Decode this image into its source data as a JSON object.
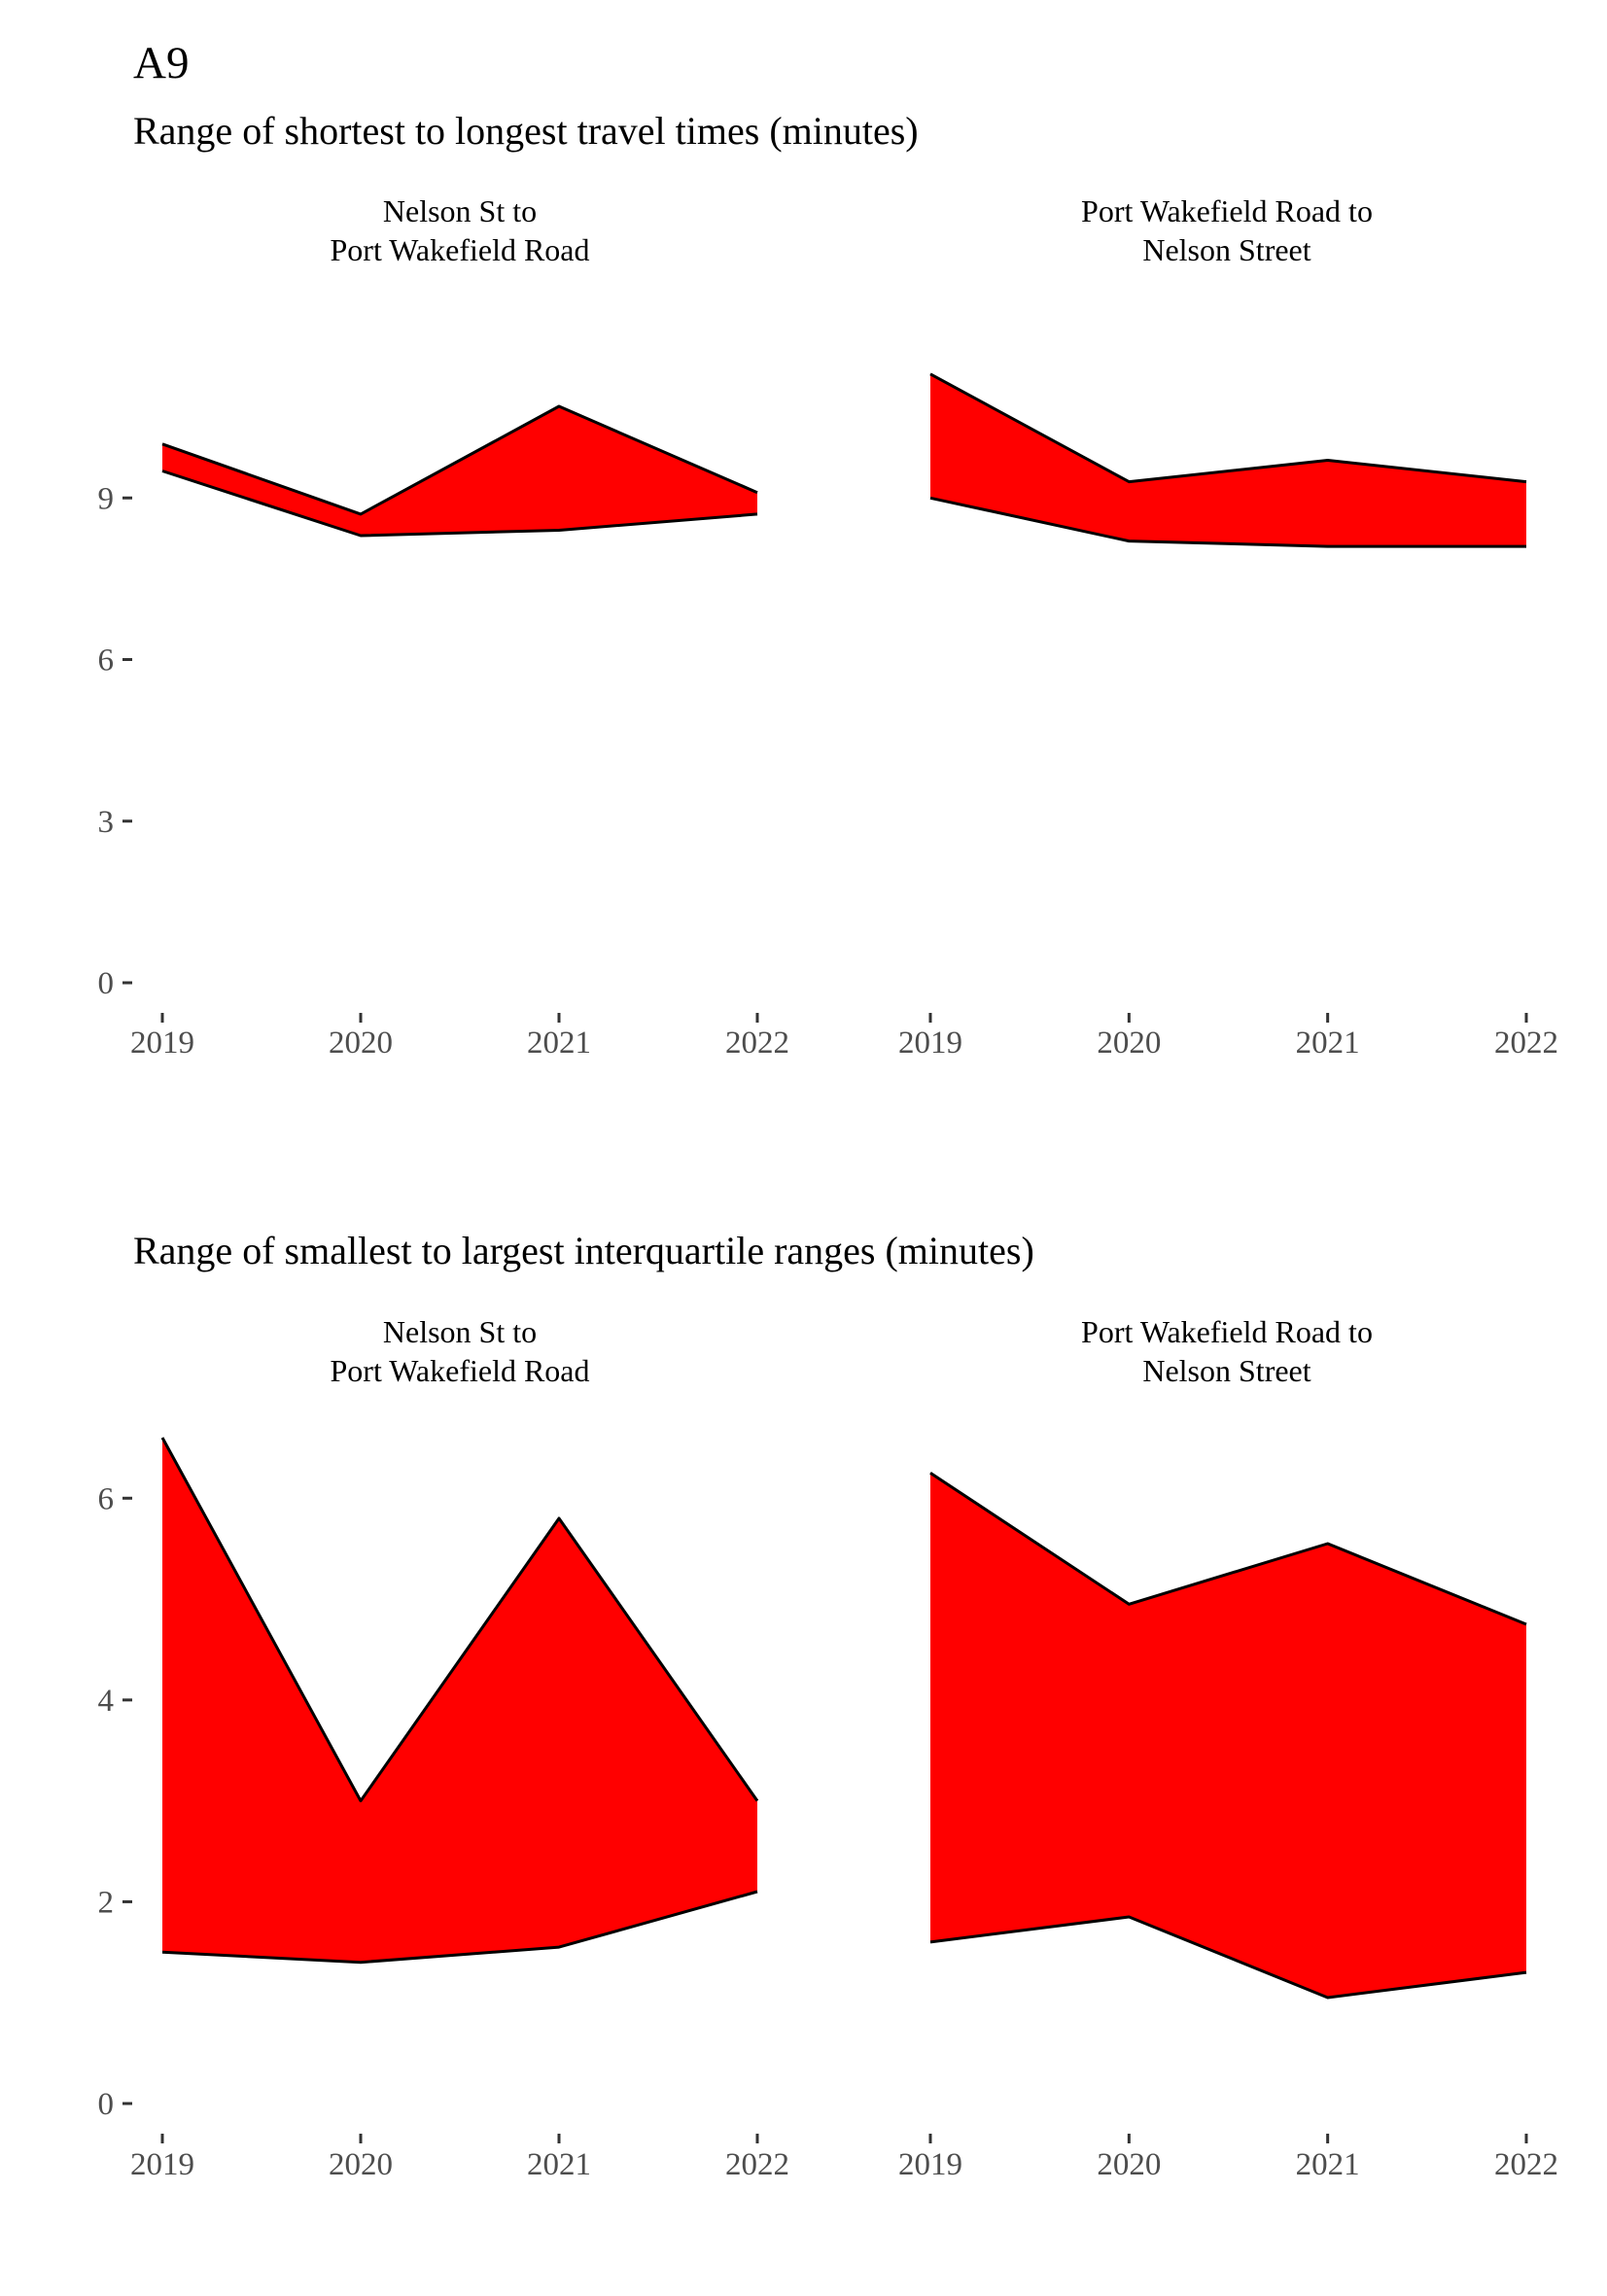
{
  "figure": {
    "title": "A9"
  },
  "chart_data": [
    {
      "type": "area",
      "title": "Range of shortest to longest travel times (minutes)",
      "x": [
        "2019",
        "2020",
        "2021",
        "2022"
      ],
      "ylim": [
        0,
        12
      ],
      "y_ticks": [
        0,
        3,
        6,
        9
      ],
      "grid": false,
      "panels": [
        {
          "label_lines": [
            "Nelson St to",
            "Port Wakefield Road"
          ],
          "min": [
            9.5,
            8.3,
            8.4,
            8.7
          ],
          "max": [
            10.0,
            8.7,
            10.7,
            9.1
          ]
        },
        {
          "label_lines": [
            "Port Wakefield Road to",
            "Nelson Street"
          ],
          "min": [
            9.0,
            8.2,
            8.1,
            8.1
          ],
          "max": [
            11.3,
            9.3,
            9.7,
            9.3
          ]
        }
      ]
    },
    {
      "type": "area",
      "title": "Range of smallest to largest interquartile ranges (minutes)",
      "x": [
        "2019",
        "2020",
        "2021",
        "2022"
      ],
      "ylim": [
        0,
        6.6
      ],
      "y_ticks": [
        0,
        2,
        4,
        6
      ],
      "grid": false,
      "panels": [
        {
          "label_lines": [
            "Nelson St to",
            "Port Wakefield Road"
          ],
          "min": [
            1.5,
            1.4,
            1.55,
            2.1
          ],
          "max": [
            6.6,
            3.0,
            5.8,
            3.0
          ]
        },
        {
          "label_lines": [
            "Port Wakefield Road to",
            "Nelson Street"
          ],
          "min": [
            1.6,
            1.85,
            1.05,
            1.3
          ],
          "max": [
            6.25,
            4.95,
            5.55,
            4.75
          ]
        }
      ]
    }
  ]
}
